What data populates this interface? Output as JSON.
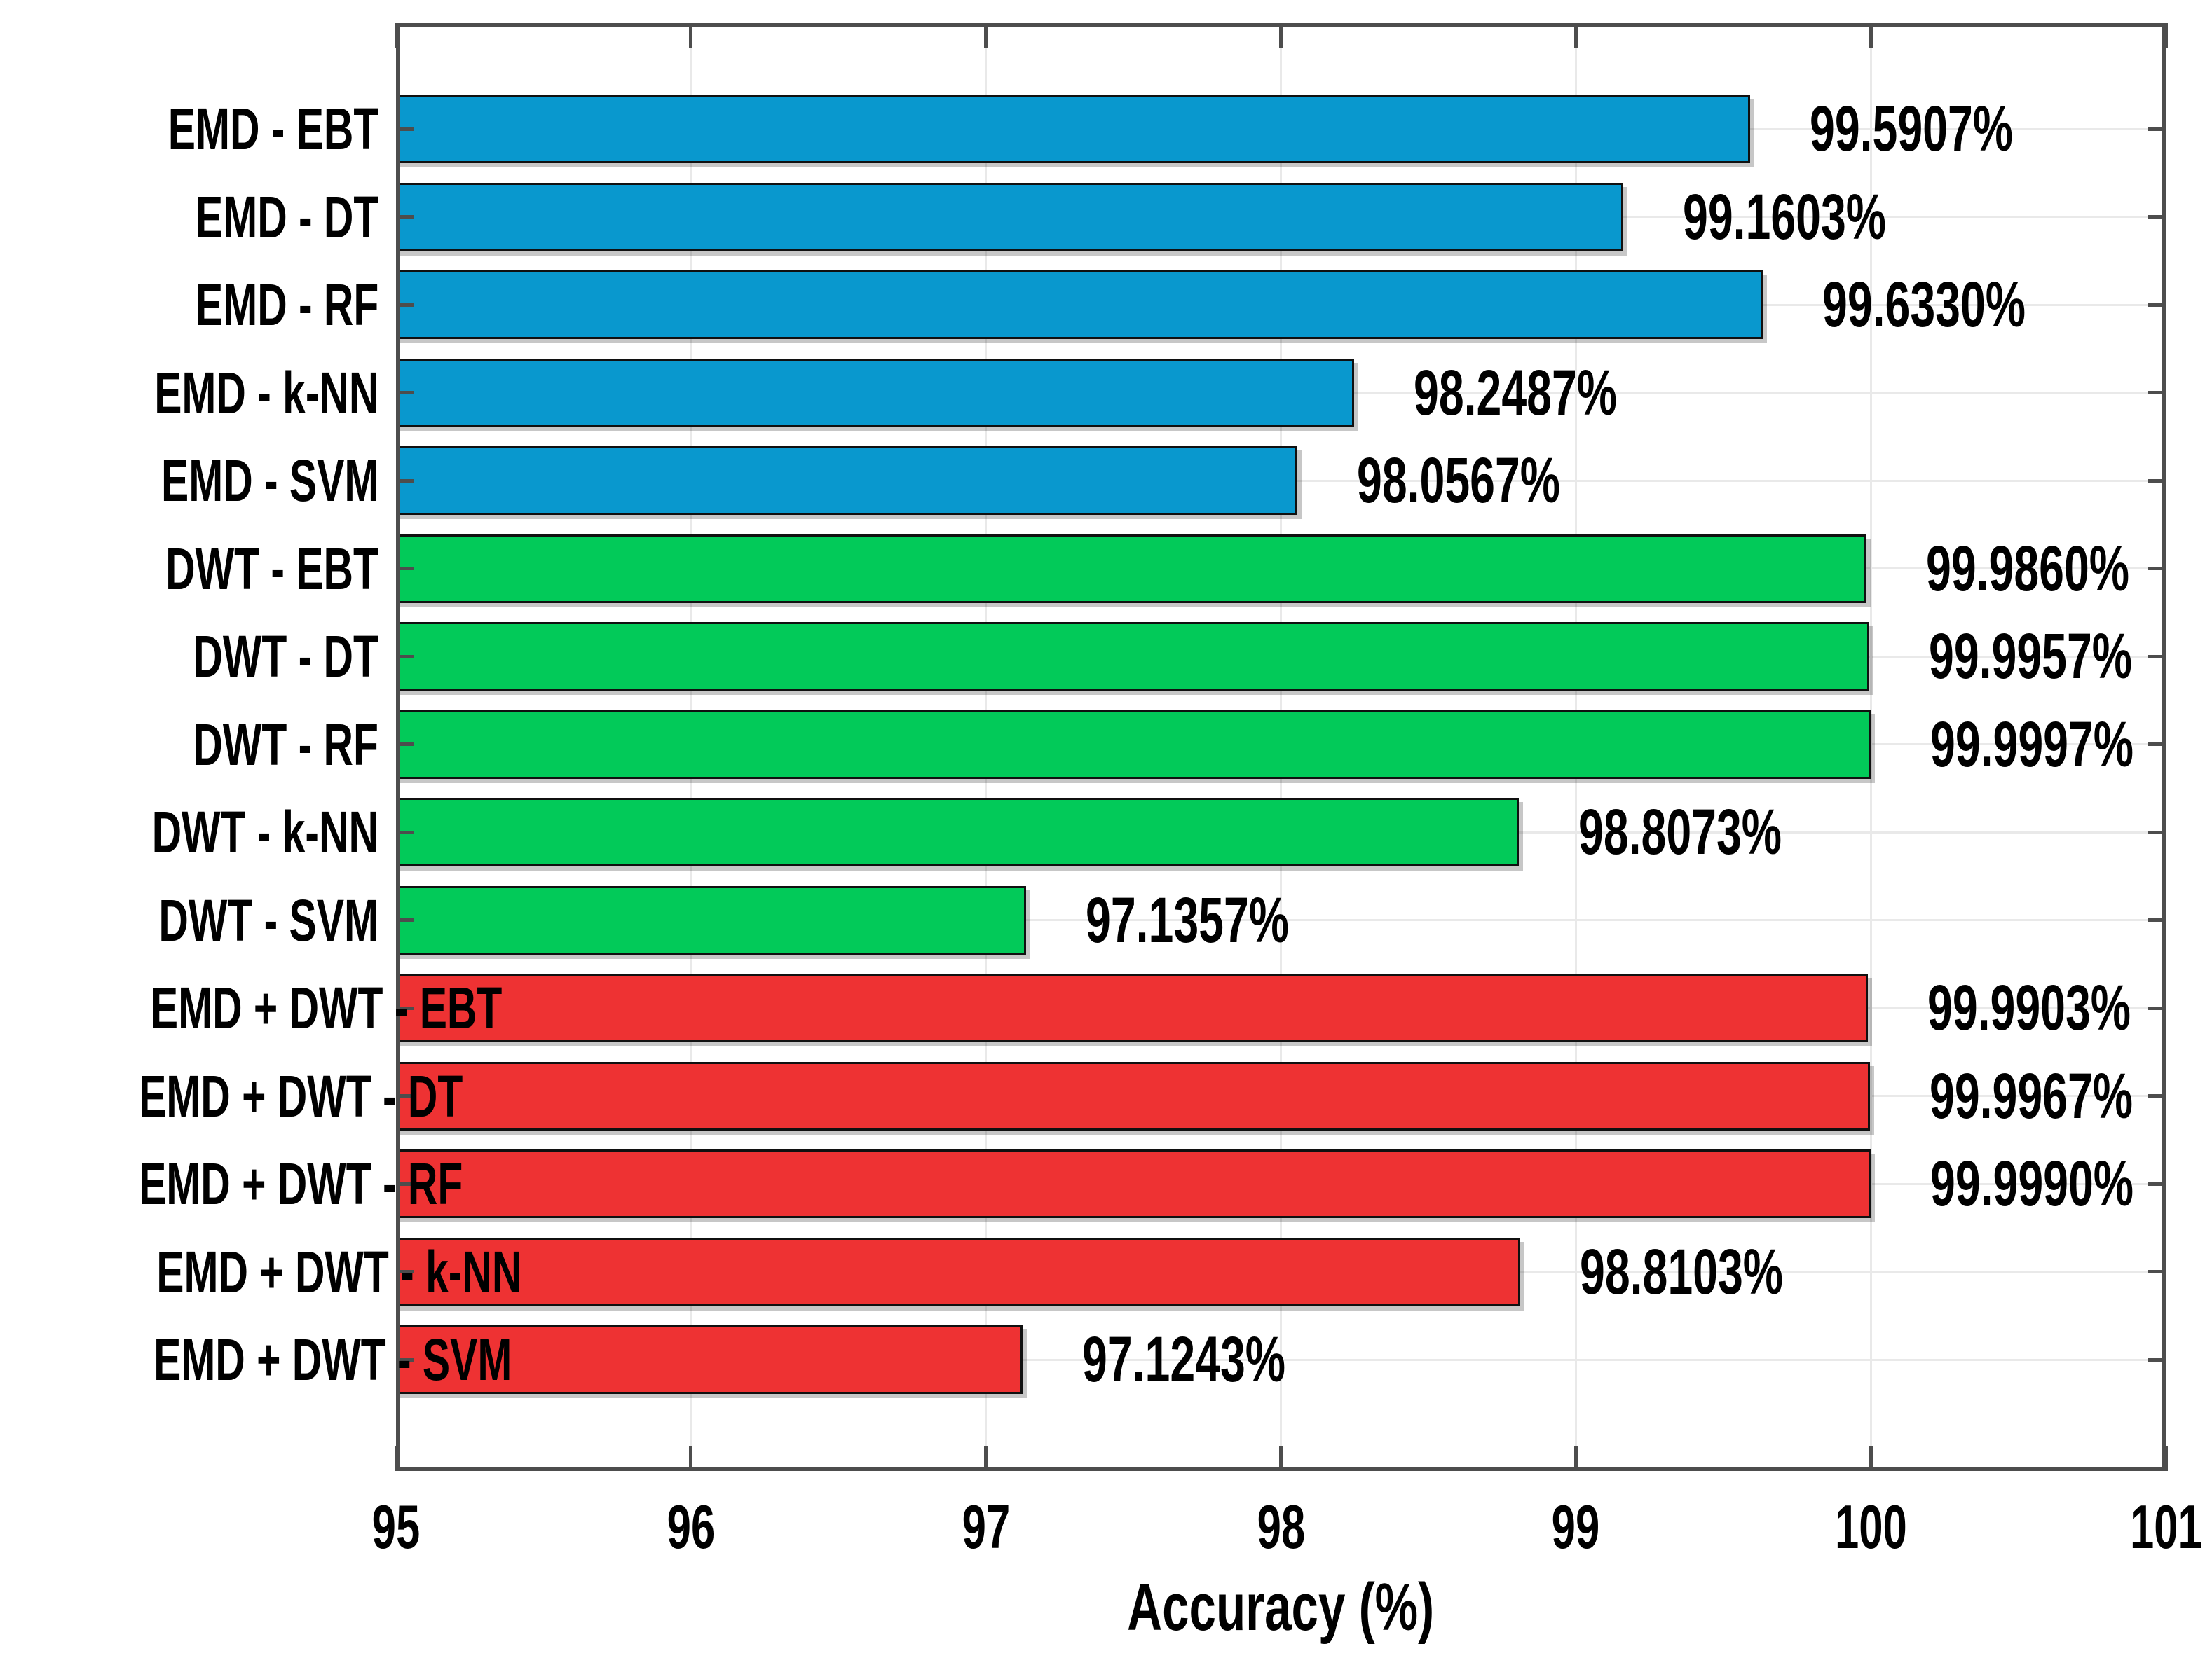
{
  "chart_data": {
    "type": "bar",
    "orientation": "horizontal",
    "title": "",
    "xlabel": "Accuracy (%)",
    "ylabel": "",
    "xlim": [
      95,
      101
    ],
    "xticks": [
      95,
      96,
      97,
      98,
      99,
      100,
      101
    ],
    "xtick_labels": [
      "95",
      "96",
      "97",
      "98",
      "99",
      "100",
      "101"
    ],
    "grid": true,
    "legend": "none",
    "categories_order": "top-to-bottom",
    "categories": [
      "EMD - EBT",
      "EMD - DT",
      "EMD - RF",
      "EMD - k-NN",
      "EMD - SVM",
      "DWT - EBT",
      "DWT - DT",
      "DWT - RF",
      "DWT - k-NN",
      "DWT - SVM",
      "EMD + DWT - EBT",
      "EMD + DWT - DT",
      "EMD + DWT - RF",
      "EMD + DWT - k-NN",
      "EMD + DWT - SVM"
    ],
    "values": [
      99.5907,
      99.1603,
      99.633,
      98.2487,
      98.0567,
      99.986,
      99.9957,
      99.9997,
      98.8073,
      97.1357,
      99.9903,
      99.9967,
      99.999,
      98.8103,
      97.1243
    ],
    "value_labels": [
      "99.5907%",
      "99.1603%",
      "99.6330%",
      "98.2487%",
      "98.0567%",
      "99.9860%",
      "99.9957%",
      "99.9997%",
      "98.8073%",
      "97.1357%",
      "99.9903%",
      "99.9967%",
      "99.9990%",
      "98.8103%",
      "97.1243%"
    ],
    "bar_colors": [
      "#0998CE",
      "#0998CE",
      "#0998CE",
      "#0998CE",
      "#0998CE",
      "#02CA59",
      "#02CA59",
      "#02CA59",
      "#02CA59",
      "#02CA59",
      "#EE3233",
      "#EE3233",
      "#EE3233",
      "#EE3233",
      "#EE3233"
    ],
    "group_colors": {
      "EMD": "#0998CE",
      "DWT": "#02CA59",
      "EMD + DWT": "#EE3233"
    },
    "style_colors": {
      "grid": "#e9e9e9",
      "axis_frame": "#4d4d4d",
      "bar_edge": "#101010",
      "text": "#000000",
      "background": "#ffffff"
    }
  }
}
